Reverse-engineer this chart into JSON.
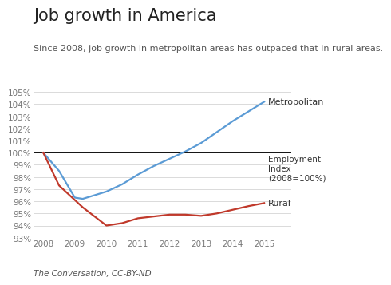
{
  "title": "Job growth in America",
  "subtitle": "Since 2008, job growth in metropolitan areas has outpaced that in rural areas.",
  "footer": "The Conversation, CC-BY-ND",
  "ylim": [
    93,
    105.5
  ],
  "xlim": [
    2007.7,
    2015.85
  ],
  "yticks": [
    93,
    94,
    95,
    96,
    97,
    98,
    99,
    100,
    101,
    102,
    103,
    104,
    105
  ],
  "xticks": [
    2008,
    2009,
    2010,
    2011,
    2012,
    2013,
    2014,
    2015
  ],
  "metro_x": [
    2008,
    2008.5,
    2009,
    2009.25,
    2009.5,
    2010,
    2010.5,
    2011,
    2011.5,
    2012,
    2012.5,
    2013,
    2013.5,
    2014,
    2014.5,
    2015
  ],
  "metro_y": [
    100.0,
    98.5,
    96.3,
    96.2,
    96.4,
    96.8,
    97.4,
    98.2,
    98.9,
    99.5,
    100.1,
    100.8,
    101.7,
    102.6,
    103.4,
    104.2
  ],
  "rural_x": [
    2008,
    2008.5,
    2009,
    2009.25,
    2009.5,
    2010,
    2010.5,
    2011,
    2011.5,
    2012,
    2012.5,
    2013,
    2013.5,
    2014,
    2014.5,
    2015
  ],
  "rural_y": [
    100.0,
    97.3,
    96.1,
    95.5,
    95.0,
    94.0,
    94.2,
    94.6,
    94.75,
    94.9,
    94.9,
    94.8,
    95.0,
    95.3,
    95.6,
    95.85
  ],
  "metro_color": "#5b9bd5",
  "rural_color": "#c0392b",
  "baseline_color": "#111111",
  "baseline_y": 100,
  "metro_label": "Metropolitan",
  "rural_label": "Rural",
  "index_label": "Employment\nIndex\n(2008=100%)",
  "background_color": "#ffffff",
  "grid_color": "#cccccc",
  "title_fontsize": 15,
  "subtitle_fontsize": 8,
  "tick_fontsize": 7.5,
  "label_fontsize": 8,
  "footer_fontsize": 7.5
}
